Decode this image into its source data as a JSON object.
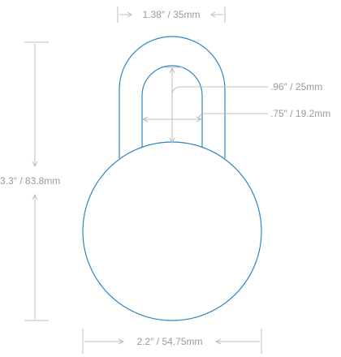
{
  "dimensions": {
    "shackle_width": ".96″ / 25mm",
    "shackle_diameter": ".75″ / 19.2mm",
    "top_width": "1.38″ / 35mm",
    "height": "3.3″ / 83.8mm",
    "body_width": "2.2″ / 54.75mm"
  },
  "colors": {
    "outline": "#2e86c1",
    "dimension_line": "#bdbdbd",
    "dimension_text": "#9a9a9a"
  }
}
